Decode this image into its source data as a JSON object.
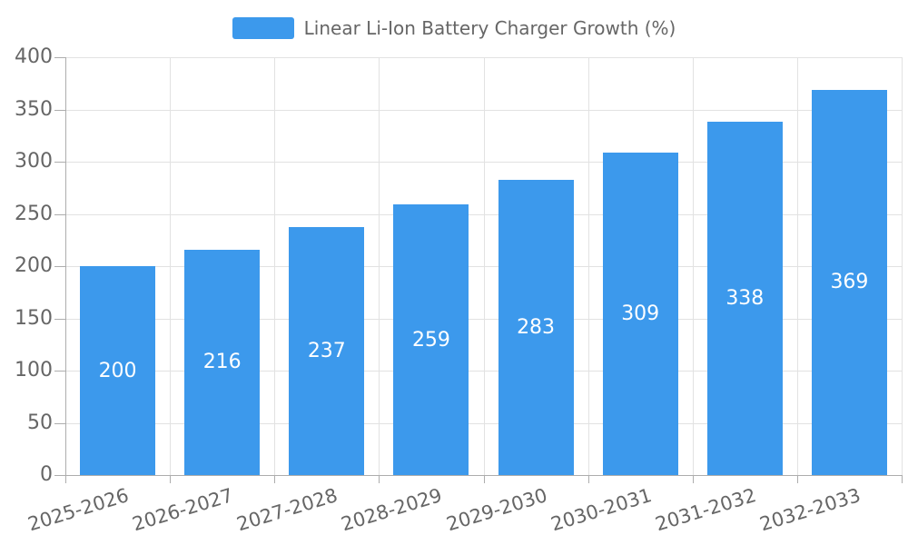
{
  "legend": {
    "label": "Linear Li-Ion Battery Charger Growth (%)"
  },
  "chart_data": {
    "type": "bar",
    "title": "Linear Li-Ion Battery Charger Growth (%)",
    "categories": [
      "2025-2026",
      "2026-2027",
      "2027-2028",
      "2028-2029",
      "2029-2030",
      "2030-2031",
      "2031-2032",
      "2032-2033"
    ],
    "series": [
      {
        "name": "Linear Li-Ion Battery Charger Growth (%)",
        "values": [
          200,
          216,
          237,
          259,
          283,
          309,
          338,
          369
        ]
      }
    ],
    "xlabel": "",
    "ylabel": "",
    "ylim": [
      0,
      400
    ],
    "ytick_step": 50,
    "yticks": [
      0,
      50,
      100,
      150,
      200,
      250,
      300,
      350,
      400
    ],
    "grid": true,
    "bar_value_labels": "inside-center",
    "legend_position": "top-center",
    "colors": {
      "bar": "#3C99EC",
      "bar_label": "#FFFFFF",
      "axis_line": "#ADADAD",
      "grid_line": "#E2E2E2",
      "tick_text": "#666666",
      "legend_text": "#666666"
    }
  }
}
